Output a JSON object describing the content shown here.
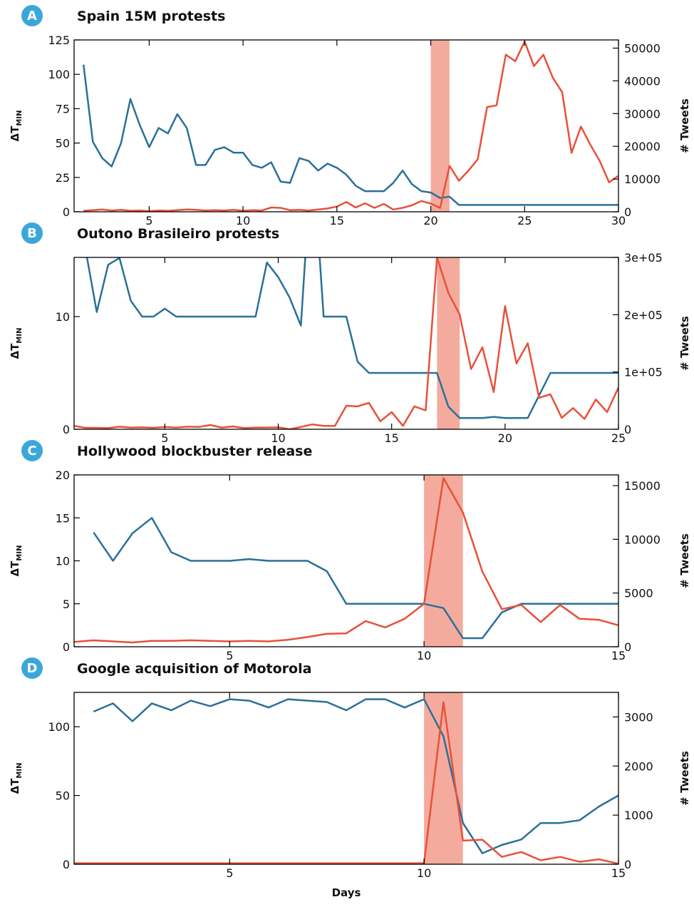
{
  "chart_data": [
    {
      "type": "line",
      "label": "A",
      "title": "Spain 15M protests",
      "ylabel": "ΔT",
      "ylabel_sub": "MIN",
      "y2label": "# Tweets",
      "x": [
        1.5,
        2,
        2.5,
        3,
        3.5,
        4,
        4.5,
        5,
        5.5,
        6,
        6.5,
        7,
        7.5,
        8,
        8.5,
        9,
        9.5,
        10,
        10.5,
        11,
        11.5,
        12,
        12.5,
        13,
        13.5,
        14,
        14.5,
        15,
        15.5,
        16,
        16.5,
        17,
        17.5,
        18,
        18.5,
        19,
        19.5,
        20,
        20.5,
        21,
        21.5,
        22,
        22.5,
        23,
        23.5,
        24,
        24.5,
        25,
        25.5,
        26,
        26.5,
        27,
        27.5,
        28,
        28.5,
        29,
        29.5,
        30
      ],
      "xlim": [
        1,
        30
      ],
      "xticks": [
        5,
        10,
        15,
        20,
        25,
        30
      ],
      "ylim": [
        0,
        125
      ],
      "yticks": [
        0,
        25,
        50,
        75,
        100,
        125
      ],
      "y2lim": [
        0,
        52500
      ],
      "y2ticks": [
        0,
        10000,
        20000,
        30000,
        40000,
        50000
      ],
      "span": [
        20,
        21
      ],
      "span_color": "#f4ab9d",
      "series": [
        {
          "color": "#2a7099",
          "values": [
            107,
            51,
            39,
            33,
            50,
            82,
            63,
            47,
            61,
            57,
            71,
            61,
            34,
            34,
            45,
            47,
            43,
            43,
            34,
            32,
            36,
            22,
            21,
            39,
            37,
            30,
            35,
            32,
            27,
            19,
            15,
            15,
            15,
            21,
            30,
            20,
            15,
            14,
            10,
            11,
            5,
            5,
            5,
            5,
            5,
            5,
            5,
            5,
            5,
            5,
            5,
            5,
            5,
            5,
            5,
            5,
            5,
            5
          ]
        },
        {
          "color": "#e8503a",
          "axis": "y2",
          "values": [
            300,
            500,
            700,
            400,
            600,
            300,
            400,
            200,
            400,
            300,
            500,
            700,
            600,
            400,
            500,
            400,
            600,
            300,
            500,
            400,
            1300,
            1200,
            500,
            600,
            400,
            700,
            1000,
            1600,
            3000,
            1300,
            2600,
            1200,
            2400,
            700,
            1200,
            2000,
            3300,
            2500,
            1200,
            14000,
            9500,
            12500,
            16000,
            32000,
            32500,
            48000,
            46000,
            52000,
            44500,
            48000,
            41000,
            36500,
            18000,
            26000,
            20500,
            15500,
            9000,
            11000
          ]
        }
      ]
    },
    {
      "type": "line",
      "label": "B",
      "title": "Outono Brasileiro protests",
      "ylabel": "ΔT",
      "ylabel_sub": "MIN",
      "y2label": "# Tweets",
      "x": [
        1,
        1.5,
        2,
        2.5,
        3,
        3.5,
        4,
        4.5,
        5,
        5.5,
        6,
        6.5,
        7,
        7.5,
        8,
        8.5,
        9,
        9.5,
        10,
        10.5,
        11,
        11.5,
        12,
        12.5,
        13,
        13.5,
        14,
        14.5,
        15,
        15.5,
        16,
        16.5,
        17,
        17.5,
        18,
        18.5,
        19,
        19.5,
        20,
        20.5,
        21,
        21.5,
        22,
        22.5,
        23,
        23.5,
        24,
        24.5,
        25
      ],
      "xlim": [
        1,
        25
      ],
      "xticks": [
        5,
        10,
        15,
        20,
        25
      ],
      "ylim": [
        0,
        15.25
      ],
      "yticks": [
        0,
        10
      ],
      "y2lim": [
        0,
        300000
      ],
      "y2ticks": [
        0,
        {
          "value": 100000,
          "label": "1e+05"
        },
        {
          "value": 200000,
          "label": "2e+05"
        },
        {
          "value": 300000,
          "label": "3e+05"
        }
      ],
      "span": [
        17,
        18
      ],
      "span_color": "#f4ab9d",
      "series": [
        {
          "color": "#2a7099",
          "values": [
            null,
            16,
            10.4,
            14.6,
            15.2,
            11.4,
            10,
            10,
            10.7,
            10,
            10,
            10,
            10,
            10,
            10,
            10,
            10,
            14.8,
            13.5,
            11.7,
            9.2,
            25,
            10,
            10,
            10,
            6,
            5,
            5,
            5,
            5,
            5,
            5,
            5,
            2,
            1,
            1,
            1,
            1.1,
            1,
            1,
            1,
            3,
            5,
            5,
            5,
            5,
            5,
            5,
            5
          ]
        },
        {
          "color": "#e8503a",
          "axis": "y2",
          "values": [
            6000,
            2500,
            2500,
            2000,
            4500,
            3000,
            3500,
            2500,
            4000,
            3000,
            4500,
            4000,
            7500,
            3000,
            5000,
            2000,
            3000,
            3000,
            3500,
            0,
            4000,
            8500,
            6000,
            6000,
            41000,
            40000,
            46000,
            14000,
            30000,
            6000,
            40000,
            33000,
            300000,
            238000,
            200000,
            105000,
            143000,
            65000,
            215000,
            115000,
            150000,
            55000,
            61000,
            20000,
            37000,
            18000,
            52000,
            30000,
            73000
          ]
        }
      ]
    },
    {
      "type": "line",
      "label": "C",
      "title": "Hollywood blockbuster release",
      "ylabel": "ΔT",
      "ylabel_sub": "MIN",
      "y2label": "# Tweets",
      "x": [
        1,
        1.5,
        2,
        2.5,
        3,
        3.5,
        4,
        4.5,
        5,
        5.5,
        6,
        6.5,
        7,
        7.5,
        8,
        8.5,
        9,
        9.5,
        10,
        10.5,
        11,
        11.5,
        12,
        12.5,
        13,
        13.5,
        14,
        14.5,
        15
      ],
      "xlim": [
        1,
        15
      ],
      "xticks": [
        5,
        10,
        15
      ],
      "ylim": [
        0,
        20
      ],
      "yticks": [
        0,
        5,
        10,
        15,
        20
      ],
      "y2lim": [
        0,
        16000
      ],
      "y2ticks": [
        0,
        5000,
        10000,
        15000
      ],
      "span": [
        10,
        11
      ],
      "span_color": "#f4ab9d",
      "series": [
        {
          "color": "#2a7099",
          "values": [
            null,
            13.3,
            10,
            13.2,
            15,
            11,
            10,
            10,
            10,
            10.2,
            10,
            10,
            10,
            8.8,
            5,
            5,
            5,
            5,
            5,
            4.5,
            1,
            1,
            4,
            5,
            5,
            5,
            5,
            5,
            5
          ]
        },
        {
          "color": "#e8503a",
          "axis": "y2",
          "values": [
            450,
            600,
            500,
            400,
            550,
            550,
            600,
            550,
            500,
            550,
            500,
            650,
            900,
            1200,
            1250,
            2400,
            1800,
            2600,
            4000,
            15700,
            12500,
            7000,
            3500,
            3900,
            2300,
            3900,
            2600,
            2500,
            2000
          ]
        }
      ]
    },
    {
      "type": "line",
      "label": "D",
      "title": "Google acquisition of Motorola",
      "ylabel": "ΔT",
      "ylabel_sub": "MIN",
      "y2label": "# Tweets",
      "xlabel": "Days",
      "x": [
        1,
        1.5,
        2,
        2.5,
        3,
        3.5,
        4,
        4.5,
        5,
        5.5,
        6,
        6.5,
        7,
        7.5,
        8,
        8.5,
        9,
        9.5,
        10,
        10.5,
        11,
        11.5,
        12,
        12.5,
        13,
        13.5,
        14,
        14.5,
        15
      ],
      "xlim": [
        1,
        15
      ],
      "xticks": [
        5,
        10,
        15
      ],
      "ylim": [
        0,
        125
      ],
      "yticks": [
        0,
        50,
        100
      ],
      "y2lim": [
        0,
        3500
      ],
      "y2ticks": [
        0,
        1000,
        2000,
        3000
      ],
      "span": [
        10,
        11
      ],
      "span_color": "#f4ab9d",
      "series": [
        {
          "color": "#2a7099",
          "values": [
            null,
            111,
            117,
            104,
            117,
            112,
            119,
            115,
            120,
            119,
            114,
            120,
            119,
            118,
            112,
            120,
            120,
            114,
            120,
            93,
            30,
            8,
            14,
            18,
            30,
            30,
            32,
            42,
            50
          ]
        },
        {
          "color": "#e8503a",
          "axis": "y2",
          "values": [
            20,
            20,
            20,
            20,
            20,
            20,
            20,
            20,
            20,
            20,
            20,
            20,
            20,
            20,
            20,
            20,
            20,
            20,
            20,
            3300,
            480,
            500,
            150,
            250,
            80,
            150,
            50,
            100,
            10
          ]
        }
      ]
    }
  ]
}
